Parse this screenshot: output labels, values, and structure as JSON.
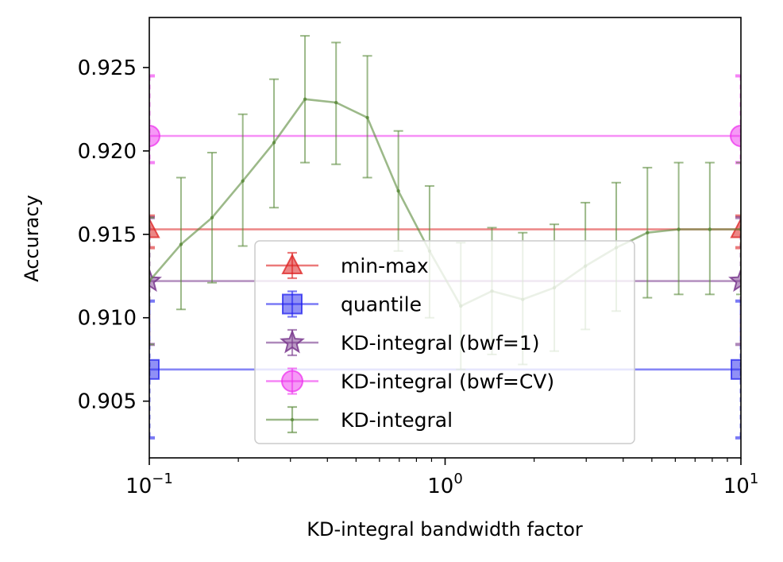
{
  "chart_data": {
    "type": "line",
    "xscale": "log",
    "xlim": [
      0.1,
      10
    ],
    "ylim": [
      0.9016,
      0.928
    ],
    "xlabel": "KD-integral bandwidth factor",
    "ylabel": "Accuracy",
    "y_ticks": [
      0.905,
      0.91,
      0.915,
      0.92,
      0.925
    ],
    "y_tick_labels": [
      "0.905",
      "0.910",
      "0.915",
      "0.920",
      "0.925"
    ],
    "x_ticks": [
      {
        "value": 0.1,
        "base": "10",
        "exp": "−1"
      },
      {
        "value": 1,
        "base": "10",
        "exp": "0"
      },
      {
        "value": 10,
        "base": "10",
        "exp": "1"
      }
    ],
    "legend_position": "lower-center",
    "series": [
      {
        "name": "min-max",
        "label": "min-max",
        "color": "#dd2222",
        "marker": "triangle",
        "kind": "hline",
        "value": 0.9153,
        "err_low": 0.9142,
        "err_high": 0.9161
      },
      {
        "name": "quantile",
        "label": "quantile",
        "color": "#2222ee",
        "marker": "square",
        "kind": "hline",
        "value": 0.9069,
        "err_low": 0.9028,
        "err_high": 0.911
      },
      {
        "name": "kd-bwf1",
        "label": "KD-integral (bwf=1)",
        "color": "#7a3a8e",
        "marker": "star",
        "kind": "hline",
        "value": 0.9122,
        "err_low": 0.9084,
        "err_high": 0.916
      },
      {
        "name": "kd-bwfcv",
        "label": "KD-integral (bwf=CV)",
        "color": "#ee33ee",
        "marker": "circle",
        "kind": "hline",
        "value": 0.9209,
        "err_low": 0.9193,
        "err_high": 0.9245
      },
      {
        "name": "kd-integral",
        "label": "KD-integral",
        "color": "#5a8a3a",
        "marker": "point",
        "kind": "line",
        "x": [
          0.1,
          0.128,
          0.163,
          0.207,
          0.264,
          0.336,
          0.428,
          0.546,
          0.695,
          0.886,
          1.13,
          1.44,
          1.83,
          2.34,
          2.98,
          3.79,
          4.83,
          6.16,
          7.85,
          10
        ],
        "y": [
          0.9122,
          0.9144,
          0.916,
          0.9182,
          0.9205,
          0.9231,
          0.9229,
          0.922,
          0.9176,
          0.914,
          0.9107,
          0.9116,
          0.9111,
          0.9118,
          0.9131,
          0.9142,
          0.9151,
          0.9153,
          0.9153,
          0.9153
        ],
        "yerr_low": [
          0.9084,
          0.9105,
          0.9121,
          0.9143,
          0.9166,
          0.9193,
          0.9192,
          0.9184,
          0.914,
          0.91,
          0.9069,
          0.9078,
          0.9072,
          0.908,
          0.9093,
          0.9104,
          0.9112,
          0.9114,
          0.9114,
          0.9114
        ],
        "yerr_high": [
          0.916,
          0.9184,
          0.9199,
          0.9222,
          0.9243,
          0.9269,
          0.9265,
          0.9257,
          0.9212,
          0.9179,
          0.9145,
          0.9154,
          0.9151,
          0.9156,
          0.9169,
          0.9181,
          0.919,
          0.9193,
          0.9193,
          0.9193
        ]
      }
    ]
  }
}
